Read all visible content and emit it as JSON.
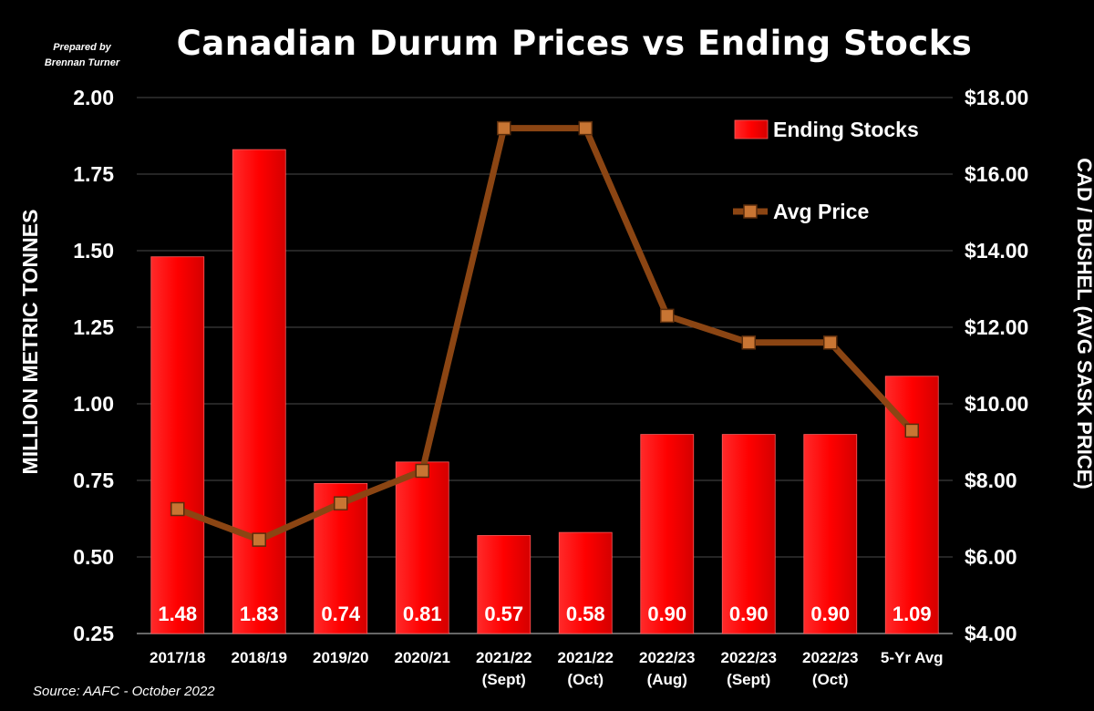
{
  "title": "Canadian Durum Prices vs Ending Stocks",
  "credit": {
    "line1": "Prepared by",
    "line2": "Brennan Turner"
  },
  "source": "Source: AAFC -  October 2022",
  "colors": {
    "bars": "#ff0000",
    "line": "#8b4513",
    "marker": "#c87533",
    "grid": "#4a4a4a",
    "background": "#000000",
    "text": "#ffffff"
  },
  "chart_data": {
    "type": "bar",
    "title": "Canadian Durum Prices vs Ending Stocks",
    "categories": [
      [
        "2017/18"
      ],
      [
        "2018/19"
      ],
      [
        "2019/20"
      ],
      [
        "2020/21"
      ],
      [
        "2021/22",
        "(Sept)"
      ],
      [
        "2021/22",
        "(Oct)"
      ],
      [
        "2022/23",
        "(Aug)"
      ],
      [
        "2022/23",
        "(Sept)"
      ],
      [
        "2022/23",
        "(Oct)"
      ],
      [
        "5-Yr Avg"
      ]
    ],
    "series": [
      {
        "name": "Ending Stocks",
        "type": "bar",
        "axis": "left",
        "values": [
          1.48,
          1.83,
          0.74,
          0.81,
          0.57,
          0.58,
          0.9,
          0.9,
          0.9,
          1.09
        ],
        "labels": [
          "1.48",
          "1.83",
          "0.74",
          "0.81",
          "0.57",
          "0.58",
          "0.90",
          "0.90",
          "0.90",
          "1.09"
        ]
      },
      {
        "name": "Avg Price",
        "type": "line",
        "axis": "right",
        "values": [
          7.25,
          6.45,
          7.4,
          8.25,
          17.2,
          17.2,
          12.3,
          11.6,
          11.6,
          9.3
        ]
      }
    ],
    "ylabel": "MILLION METRIC TONNES",
    "y2label": "CAD / BUSHEL (AVG SASK PRICE)",
    "ylim": [
      0.25,
      2.0
    ],
    "y2lim": [
      4.0,
      18.0
    ],
    "yticks": [
      "0.25",
      "0.50",
      "0.75",
      "1.00",
      "1.25",
      "1.50",
      "1.75",
      "2.00"
    ],
    "y2ticks": [
      "$4.00",
      "$6.00",
      "$8.00",
      "$10.00",
      "$12.00",
      "$14.00",
      "$16.00",
      "$18.00"
    ],
    "legend_position": "top-right",
    "grid": true
  }
}
